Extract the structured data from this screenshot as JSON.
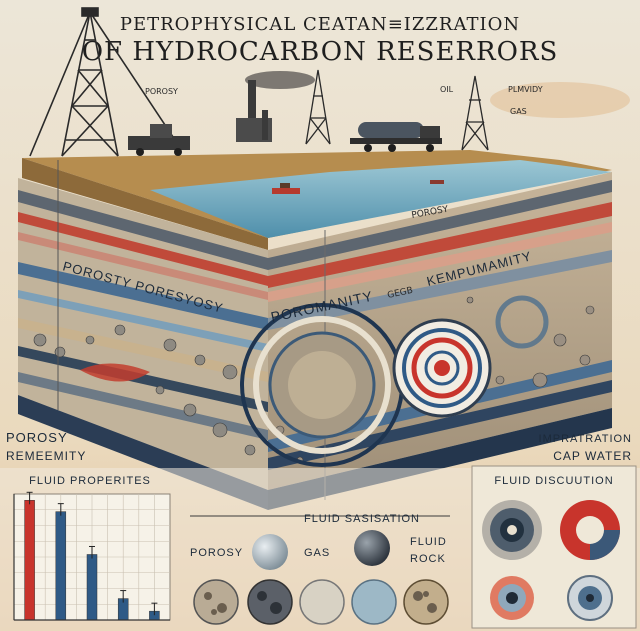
{
  "title": {
    "line1": "PETROPHYSICAL CEATAN≡IZZRATION",
    "line2": "OF HYDROCARBON RESERRORS"
  },
  "sky_labels": {
    "porosy": "POROSY",
    "oil": "OIL",
    "plmvidy": "PLMVIDY",
    "gas": "GAS"
  },
  "block_labels": {
    "porosy_top": "POROSY",
    "porosty_poresyosy": "POROSTY PORESYOSY",
    "poromanity": "POROMANITY",
    "kempumamity": "KEMPUMAMITY",
    "gegb": "GEGB"
  },
  "side_labels": {
    "left_line1": "POROSY",
    "left_line2": "REMEEMITY",
    "right_line1": "IMPRATRATION",
    "right_line2": "CAP WATER"
  },
  "panels": {
    "fluid_properties": "FLUID PROPERITES",
    "fluid_saturation": "FLUID SASISATION",
    "fluid_distribution": "FLUID DISCUUTION"
  },
  "sample_labels": {
    "porosy": "POROSY",
    "gas": "GAS",
    "fluid": "FLUID",
    "rock": "ROCK"
  },
  "chart_data": {
    "type": "bar",
    "title": "FLUID PROPERITES",
    "categories": [
      "",
      "",
      "",
      "",
      ""
    ],
    "series": [
      {
        "color": "#c8342c",
        "values": [
          0.95,
          0,
          0,
          0,
          0
        ]
      },
      {
        "color": "#2f5a86",
        "values": [
          0,
          0.86,
          0.52,
          0.17,
          0.07
        ]
      }
    ],
    "ylim": [
      0,
      1
    ],
    "grid": true,
    "error_bars": true
  },
  "colors": {
    "red": "#c8342c",
    "navy": "#2f5a86",
    "sky": "#e7dfcd",
    "water": "#7fb4c8",
    "soil": "#b58f52"
  }
}
